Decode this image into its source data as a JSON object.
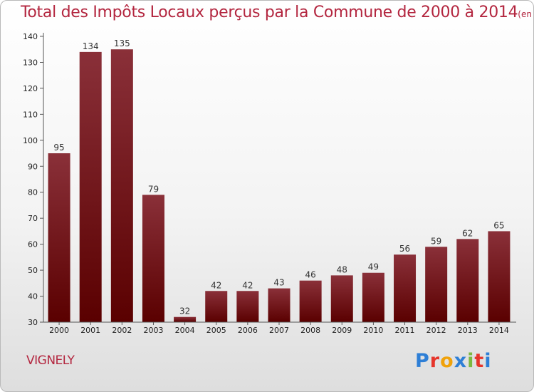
{
  "header": {
    "title": "Total des Impôts Locaux perçus par la Commune de 2000 à 2014",
    "unit": "(en milliers d'€)"
  },
  "footer": {
    "commune": "VIGNELY",
    "logo": "Proxiti",
    "logo_colors": [
      "#2e7fd6",
      "#e6352b",
      "#f0a20b",
      "#2e7fd6",
      "#7cb940",
      "#e6352b",
      "#2e7fd6"
    ]
  },
  "colors": {
    "bar_top": "#8a3039",
    "bar_bottom": "#5a0000",
    "title": "#b3263f",
    "axis": "#555555"
  },
  "chart_data": {
    "type": "bar",
    "title": "Total des Impôts Locaux perçus par la Commune de 2000 à 2014",
    "xlabel": "",
    "ylabel": "",
    "categories": [
      "2000",
      "2001",
      "2002",
      "2003",
      "2004",
      "2005",
      "2006",
      "2007",
      "2008",
      "2009",
      "2010",
      "2011",
      "2012",
      "2013",
      "2014"
    ],
    "values": [
      95,
      134,
      135,
      79,
      32,
      42,
      42,
      43,
      46,
      48,
      49,
      56,
      59,
      62,
      65
    ],
    "ylim": [
      30,
      140
    ],
    "yticks": [
      30,
      40,
      50,
      60,
      70,
      80,
      90,
      100,
      110,
      120,
      130,
      140
    ],
    "grid": false,
    "legend": "none"
  }
}
